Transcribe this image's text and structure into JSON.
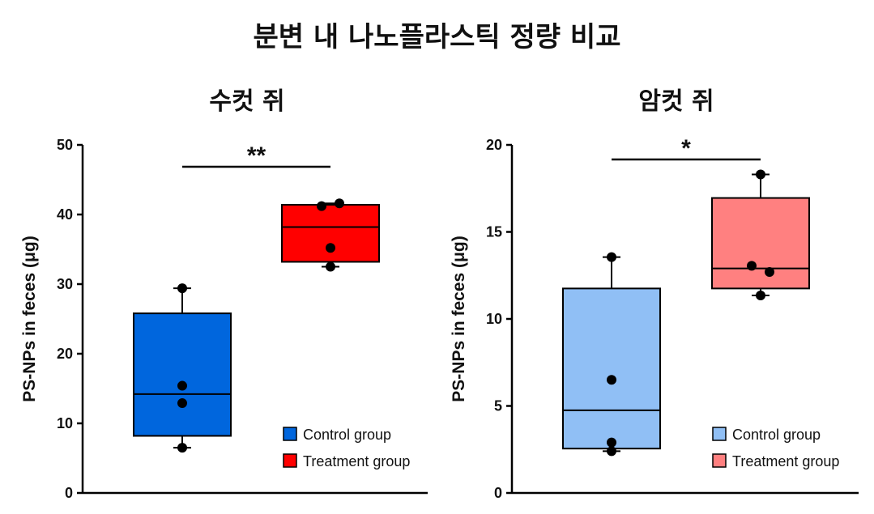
{
  "title": "분변 내 나노플라스틱 정량 비교",
  "chart_data": [
    {
      "type": "box",
      "title": "수컷 쥐",
      "ylabel": "PS-NPs in feces (μg)",
      "ylim": [
        0,
        50
      ],
      "yticks": [
        0,
        10,
        20,
        30,
        40,
        50
      ],
      "significance": "**",
      "groups": [
        {
          "name": "Control group",
          "color": "#0066dd",
          "whisker_low": 6.5,
          "q1": 8.2,
          "median": 14.2,
          "q3": 25.8,
          "whisker_high": 29.4,
          "points": [
            6.5,
            12.9,
            15.4,
            29.4
          ]
        },
        {
          "name": "Treatment group",
          "color": "#ff0000",
          "whisker_low": 32.5,
          "q1": 33.2,
          "median": 38.2,
          "q3": 41.4,
          "whisker_high": 41.6,
          "points": [
            32.5,
            35.2,
            41.2,
            41.6
          ]
        }
      ]
    },
    {
      "type": "box",
      "title": "암컷 쥐",
      "ylabel": "PS-NPs in feces (μg)",
      "ylim": [
        0,
        20
      ],
      "yticks": [
        0,
        5,
        10,
        15,
        20
      ],
      "significance": "*",
      "groups": [
        {
          "name": "Control group",
          "color": "#90bff5",
          "whisker_low": 2.4,
          "q1": 2.55,
          "median": 4.75,
          "q3": 11.75,
          "whisker_high": 13.55,
          "points": [
            2.4,
            2.9,
            6.5,
            13.55
          ]
        },
        {
          "name": "Treatment group",
          "color": "#ff8080",
          "whisker_low": 11.35,
          "q1": 11.75,
          "median": 12.9,
          "q3": 16.95,
          "whisker_high": 18.3,
          "points": [
            11.35,
            12.7,
            13.05,
            18.3
          ]
        }
      ]
    }
  ]
}
